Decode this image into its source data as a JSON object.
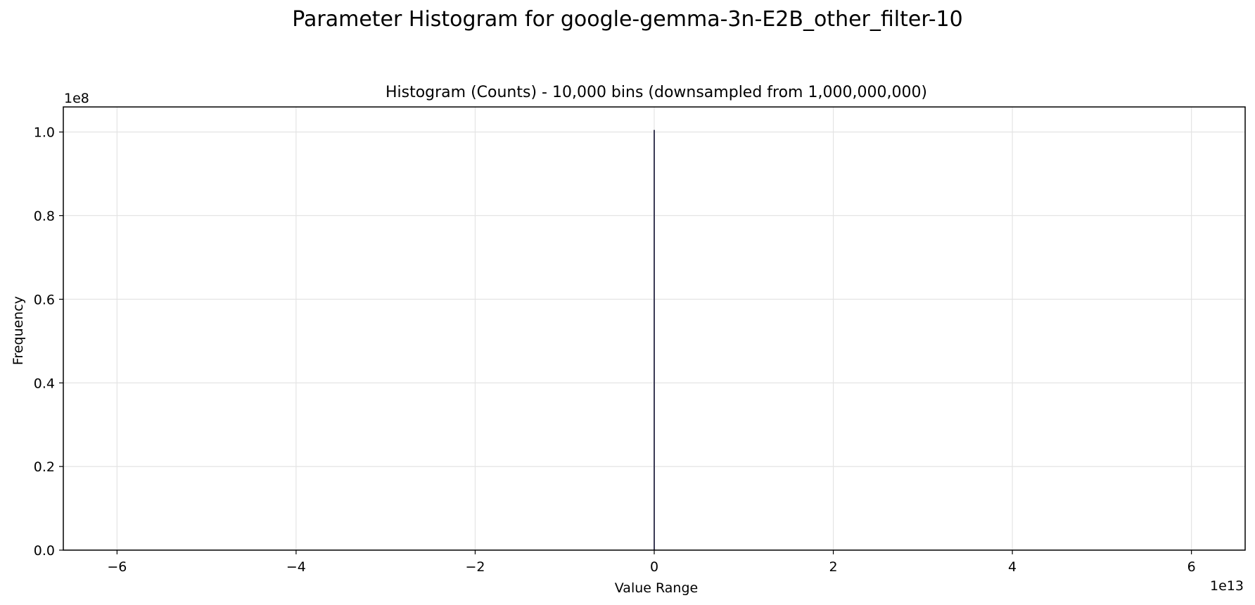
{
  "figure": {
    "suptitle": "Parameter Histogram for google-gemma-3n-E2B_other_filter-10"
  },
  "chart_data": {
    "type": "bar",
    "title": "Histogram (Counts) - 10,000 bins (downsampled from 1,000,000,000)",
    "xlabel": "Value Range",
    "ylabel": "Frequency",
    "x_offset_text": "1e13",
    "y_offset_text": "1e8",
    "xlim": [
      -6.6,
      6.6
    ],
    "ylim": [
      0,
      1.06
    ],
    "x_ticks": [
      -6,
      -4,
      -2,
      0,
      2,
      4,
      6
    ],
    "x_tick_labels": [
      "−6",
      "−4",
      "−2",
      "0",
      "2",
      "4",
      "6"
    ],
    "y_ticks": [
      0.0,
      0.2,
      0.4,
      0.6,
      0.8,
      1.0
    ],
    "y_tick_labels": [
      "0.0",
      "0.2",
      "0.4",
      "0.6",
      "0.8",
      "1.0"
    ],
    "grid": true,
    "bars": [
      {
        "x": 0.0,
        "value": 1.005
      }
    ],
    "bar_color": "#3b3b55"
  }
}
